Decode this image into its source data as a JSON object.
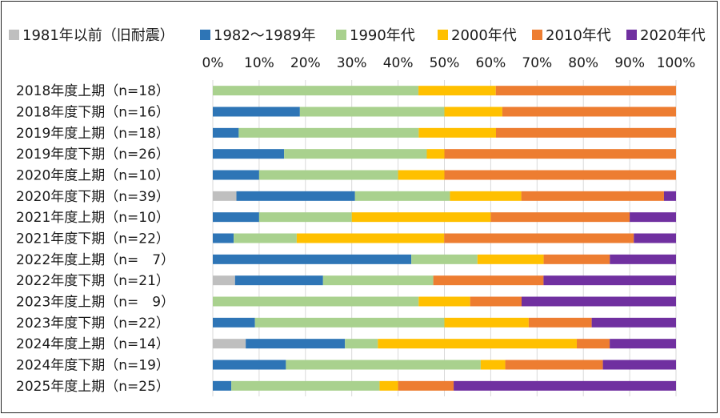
{
  "chart_data": {
    "type": "bar",
    "orientation": "horizontal",
    "stacked": true,
    "percent_stacked": true,
    "title": "",
    "xlabel": "",
    "ylabel": "",
    "xlim": [
      0,
      100
    ],
    "x_ticks": [
      "0%",
      "10%",
      "20%",
      "30%",
      "40%",
      "50%",
      "60%",
      "70%",
      "80%",
      "90%",
      "100%"
    ],
    "legend_position": "top",
    "grid": "vertical",
    "categories": [
      "2018年度上期（n=18）",
      "2018年度下期（n=16）",
      "2019年度上期（n=18）",
      "2019年度下期（n=26）",
      "2020年度上期（n=10）",
      "2020年度下期（n=39）",
      "2021年度上期（n=10）",
      "2021年度下期（n=22）",
      "2022年度上期（n=　7）",
      "2022年度下期（n=21）",
      "2023年度上期（n=　9）",
      "2023年度下期（n=22）",
      "2024年度上期（n=14）",
      "2024年度下期（n=19）",
      "2025年度上期（n=25）"
    ],
    "series": [
      {
        "name": "1981年以前（旧耐震）",
        "color": "#bfbfbf",
        "values": [
          0,
          0,
          0,
          0,
          0,
          5.1,
          0,
          0,
          0,
          4.8,
          0,
          0,
          7.1,
          0,
          0
        ]
      },
      {
        "name": "1982～1989年",
        "color": "#2e75b6",
        "values": [
          0,
          18.8,
          5.6,
          15.4,
          10,
          25.6,
          10,
          4.5,
          42.9,
          19.0,
          0,
          9.1,
          21.4,
          15.8,
          4.0
        ]
      },
      {
        "name": "1990年代",
        "color": "#a9d18e",
        "values": [
          44.4,
          31.2,
          38.9,
          30.8,
          30,
          20.5,
          20,
          13.6,
          14.3,
          23.8,
          44.4,
          40.9,
          7.1,
          42.1,
          32.0
        ]
      },
      {
        "name": "2000年代",
        "color": "#ffc000",
        "values": [
          16.7,
          12.5,
          16.7,
          3.8,
          10,
          15.4,
          30,
          31.8,
          14.3,
          0,
          11.1,
          18.2,
          42.9,
          5.3,
          4.0
        ]
      },
      {
        "name": "2010年代",
        "color": "#ed7d31",
        "values": [
          38.9,
          37.5,
          38.9,
          50.0,
          50,
          30.8,
          30,
          40.9,
          14.3,
          23.8,
          11.1,
          13.6,
          7.1,
          21.1,
          12.0
        ]
      },
      {
        "name": "2020年代",
        "color": "#7030a0",
        "values": [
          0,
          0,
          0,
          0,
          0,
          2.6,
          10,
          9.1,
          14.3,
          28.6,
          33.3,
          18.2,
          14.3,
          15.8,
          48.0
        ]
      }
    ]
  }
}
